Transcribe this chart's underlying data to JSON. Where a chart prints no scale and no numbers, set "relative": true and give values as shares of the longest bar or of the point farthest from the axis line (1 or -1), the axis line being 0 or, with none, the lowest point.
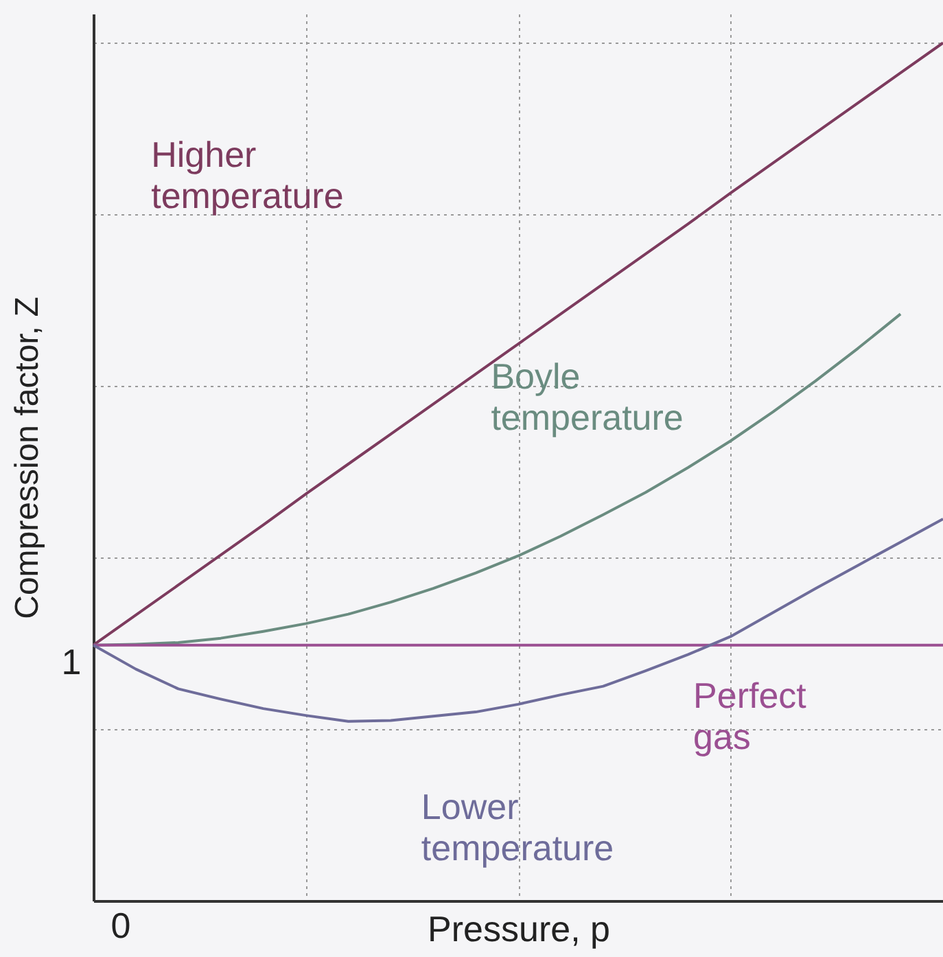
{
  "chart_data": {
    "type": "line",
    "relative": true,
    "xlabel": "Pressure, p",
    "ylabel": "Compression factor, Z",
    "annotations": [
      "1",
      "0"
    ],
    "categories": [
      null,
      null,
      null,
      null,
      null,
      null,
      null,
      null,
      null,
      null,
      null,
      null,
      null,
      null,
      null,
      null,
      null,
      null,
      null,
      null,
      null
    ],
    "grid": true,
    "line_style": "solid",
    "marker": "none",
    "series": [
      {
        "name": "Higher temperature",
        "color": "#7d3b5e",
        "values": [
          0.298,
          0.333,
          0.368,
          0.403,
          0.438,
          0.474,
          0.509,
          0.544,
          0.579,
          0.614,
          0.649,
          0.684,
          0.719,
          0.754,
          0.789,
          0.825,
          0.86,
          0.895,
          0.93,
          0.965,
          1.0
        ]
      },
      {
        "name": "Boyle temperature",
        "color": "#6a8c80",
        "values": [
          0.298,
          0.299,
          0.301,
          0.306,
          0.314,
          0.323,
          0.334,
          0.348,
          0.364,
          0.382,
          0.402,
          0.425,
          0.45,
          0.476,
          0.505,
          0.536,
          0.57,
          0.606,
          0.644,
          0.684,
          null
        ]
      },
      {
        "name": "Perfect gas",
        "color": "#9b4f92",
        "values": [
          0.298,
          0.298,
          0.298,
          0.298,
          0.298,
          0.298,
          0.298,
          0.298,
          0.298,
          0.298,
          0.298,
          0.298,
          0.298,
          0.298,
          0.298,
          0.298,
          0.298,
          0.298,
          0.298,
          0.298,
          0.298
        ]
      },
      {
        "name": "Lower temperature",
        "color": "#6e6c9a",
        "values": [
          0.298,
          0.27,
          0.247,
          0.235,
          0.224,
          0.216,
          0.209,
          0.21,
          0.215,
          0.22,
          0.229,
          0.24,
          0.25,
          0.268,
          0.287,
          0.308,
          0.336,
          0.364,
          0.391,
          0.418,
          0.445
        ]
      }
    ]
  }
}
